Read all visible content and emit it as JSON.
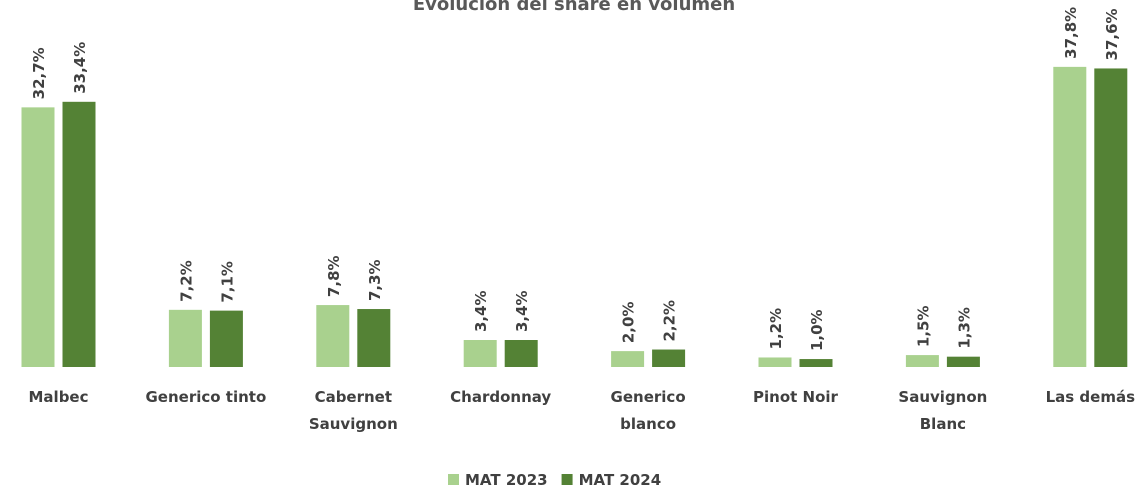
{
  "chart_data": {
    "type": "bar",
    "title": "Evolución del share en volumen",
    "categories": [
      "Malbec",
      "Generico tinto",
      "Cabernet Sauvignon",
      "Chardonnay",
      "Generico blanco",
      "Pinot Noir",
      "Sauvignon Blanc",
      "Las demás"
    ],
    "series": [
      {
        "name": "MAT 2023",
        "color": "#a9d18e",
        "values": [
          32.7,
          7.2,
          7.8,
          3.4,
          2.0,
          1.2,
          1.5,
          37.8
        ],
        "value_labels": [
          "32,7%",
          "7,2%",
          "7,8%",
          "3,4%",
          "2,0%",
          "1,2%",
          "1,5%",
          "37,8%"
        ]
      },
      {
        "name": "MAT 2024",
        "color": "#548235",
        "values": [
          33.4,
          7.1,
          7.3,
          3.4,
          2.2,
          1.0,
          1.3,
          37.6
        ],
        "value_labels": [
          "33,4%",
          "7,1%",
          "7,3%",
          "3,4%",
          "2,2%",
          "1,0%",
          "1,3%",
          "37,6%"
        ]
      }
    ],
    "legend": "bottom"
  }
}
